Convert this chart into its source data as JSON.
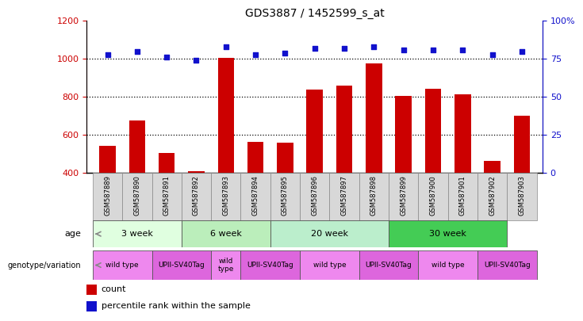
{
  "title": "GDS3887 / 1452599_s_at",
  "samples": [
    "GSM587889",
    "GSM587890",
    "GSM587891",
    "GSM587892",
    "GSM587893",
    "GSM587894",
    "GSM587895",
    "GSM587896",
    "GSM587897",
    "GSM587898",
    "GSM587899",
    "GSM587900",
    "GSM587901",
    "GSM587902",
    "GSM587903"
  ],
  "counts": [
    545,
    675,
    505,
    410,
    1005,
    565,
    560,
    840,
    860,
    975,
    805,
    845,
    815,
    465,
    700
  ],
  "percentiles": [
    78,
    80,
    76,
    74,
    83,
    78,
    79,
    82,
    82,
    83,
    81,
    81,
    81,
    78,
    80
  ],
  "ylim_left": [
    400,
    1200
  ],
  "ylim_right": [
    0,
    100
  ],
  "yticks_left": [
    400,
    600,
    800,
    1000,
    1200
  ],
  "yticks_right": [
    0,
    25,
    50,
    75,
    100
  ],
  "bar_color": "#cc0000",
  "dot_color": "#1111cc",
  "age_groups": [
    {
      "label": "3 week",
      "start": 0,
      "end": 3,
      "color": "#e0ffe0"
    },
    {
      "label": "6 week",
      "start": 3,
      "end": 6,
      "color": "#bbeebb"
    },
    {
      "label": "20 week",
      "start": 6,
      "end": 10,
      "color": "#bbeecc"
    },
    {
      "label": "30 week",
      "start": 10,
      "end": 14,
      "color": "#44cc55"
    }
  ],
  "genotype_groups": [
    {
      "label": "wild type",
      "start": 0,
      "end": 2,
      "color": "#ee88ee"
    },
    {
      "label": "UPII-SV40Tag",
      "start": 2,
      "end": 4,
      "color": "#dd66dd"
    },
    {
      "label": "wild\ntype",
      "start": 4,
      "end": 5,
      "color": "#ee88ee"
    },
    {
      "label": "UPII-SV40Tag",
      "start": 5,
      "end": 7,
      "color": "#dd66dd"
    },
    {
      "label": "wild type",
      "start": 7,
      "end": 9,
      "color": "#ee88ee"
    },
    {
      "label": "UPII-SV40Tag",
      "start": 9,
      "end": 11,
      "color": "#dd66dd"
    },
    {
      "label": "wild type",
      "start": 11,
      "end": 13,
      "color": "#ee88ee"
    },
    {
      "label": "UPII-SV40Tag",
      "start": 13,
      "end": 15,
      "color": "#dd66dd"
    }
  ],
  "legend_count_label": "count",
  "legend_percentile_label": "percentile rank within the sample",
  "age_label": "age",
  "genotype_label": "genotype/variation",
  "tick_color_left": "#cc0000",
  "tick_color_right": "#1111cc",
  "background_color": "#ffffff",
  "sample_label_bg": "#d8d8d8"
}
